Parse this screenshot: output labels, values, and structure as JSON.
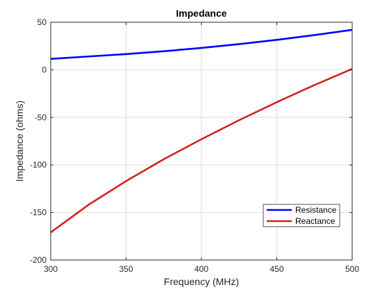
{
  "chart_data": {
    "type": "line",
    "title": "Impedance",
    "xlabel": "Frequency (MHz)",
    "ylabel": "Impedance (ohms)",
    "xlim": [
      300,
      500
    ],
    "ylim": [
      -200,
      50
    ],
    "xticks": [
      300,
      350,
      400,
      450,
      500
    ],
    "yticks": [
      -200,
      -150,
      -100,
      -50,
      0,
      50
    ],
    "grid": true,
    "legend_position": "bottom-right",
    "series": [
      {
        "name": "Resistance",
        "color": "#0000ff",
        "x": [
          300,
          325,
          350,
          375,
          400,
          425,
          450,
          475,
          500
        ],
        "y": [
          11.5,
          14,
          16.5,
          19.5,
          23,
          27,
          31.5,
          36.5,
          42
        ]
      },
      {
        "name": "Reactance",
        "color": "#d62020",
        "x": [
          300,
          325,
          350,
          375,
          400,
          425,
          450,
          475,
          500
        ],
        "y": [
          -171,
          -142,
          -117,
          -94,
          -73,
          -53,
          -34,
          -16,
          1
        ]
      }
    ]
  }
}
